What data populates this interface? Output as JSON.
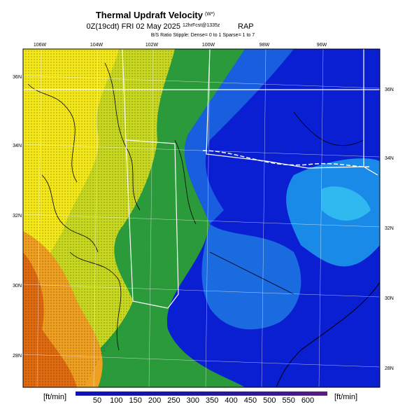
{
  "header": {
    "title": "Thermal Updraft Velocity",
    "title_superscript": "(W*)",
    "run_time": "0Z(19cdt) FRI 02 May 2025",
    "forecast": "12hrFcst@1335z",
    "model": "RAP",
    "stipple_note": "B/S Ratio Stipple: Dense= 0 to 1 Sparse= 1 to 7"
  },
  "map": {
    "longitude_labels": [
      "106W",
      "104W",
      "102W",
      "100W",
      "98W",
      "96W"
    ],
    "latitude_labels": [
      "36N",
      "34N",
      "32N",
      "30N",
      "28N"
    ]
  },
  "colorbar": {
    "unit_label": "[ft/min]",
    "ticks": [
      50,
      100,
      150,
      200,
      250,
      300,
      350,
      400,
      450,
      500,
      550,
      600
    ]
  }
}
